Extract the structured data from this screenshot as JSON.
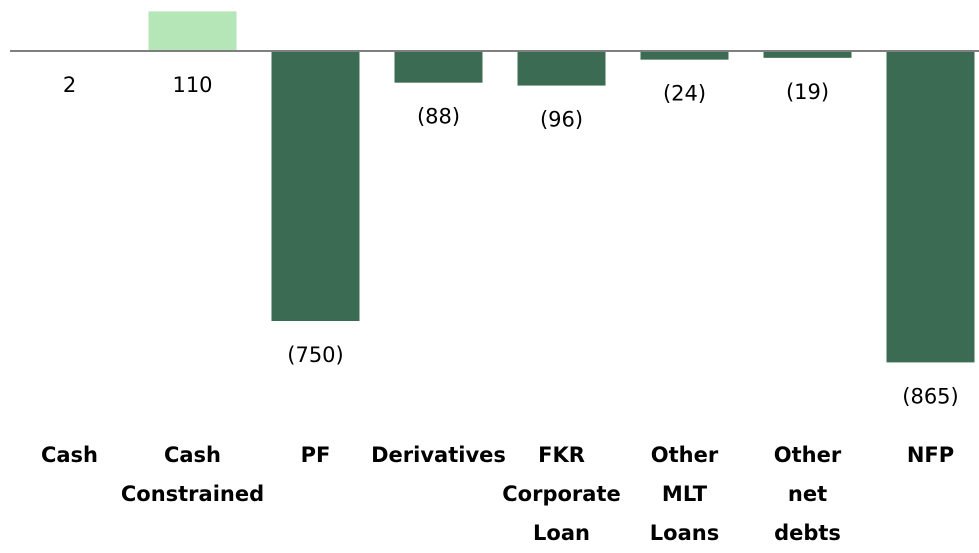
{
  "chart_data": {
    "type": "bar",
    "categories": [
      "Cash",
      "Cash Constrained",
      "PF",
      "Derivatives",
      "FKR Corporate Loan",
      "Other MLT Loans",
      "Other net debts",
      "NFP"
    ],
    "values": [
      2,
      110,
      -750,
      -88,
      -96,
      -24,
      -19,
      -865
    ],
    "value_labels": [
      "2",
      "110",
      "(750)",
      "(88)",
      "(96)",
      "(24)",
      "(19)",
      "(865)"
    ],
    "colors": [
      "#3b6b53",
      "#b5e6b7",
      "#3b6b53",
      "#3b6b53",
      "#3b6b53",
      "#3b6b53",
      "#3b6b53",
      "#3b6b53"
    ],
    "ylim": [
      -900,
      140
    ]
  }
}
